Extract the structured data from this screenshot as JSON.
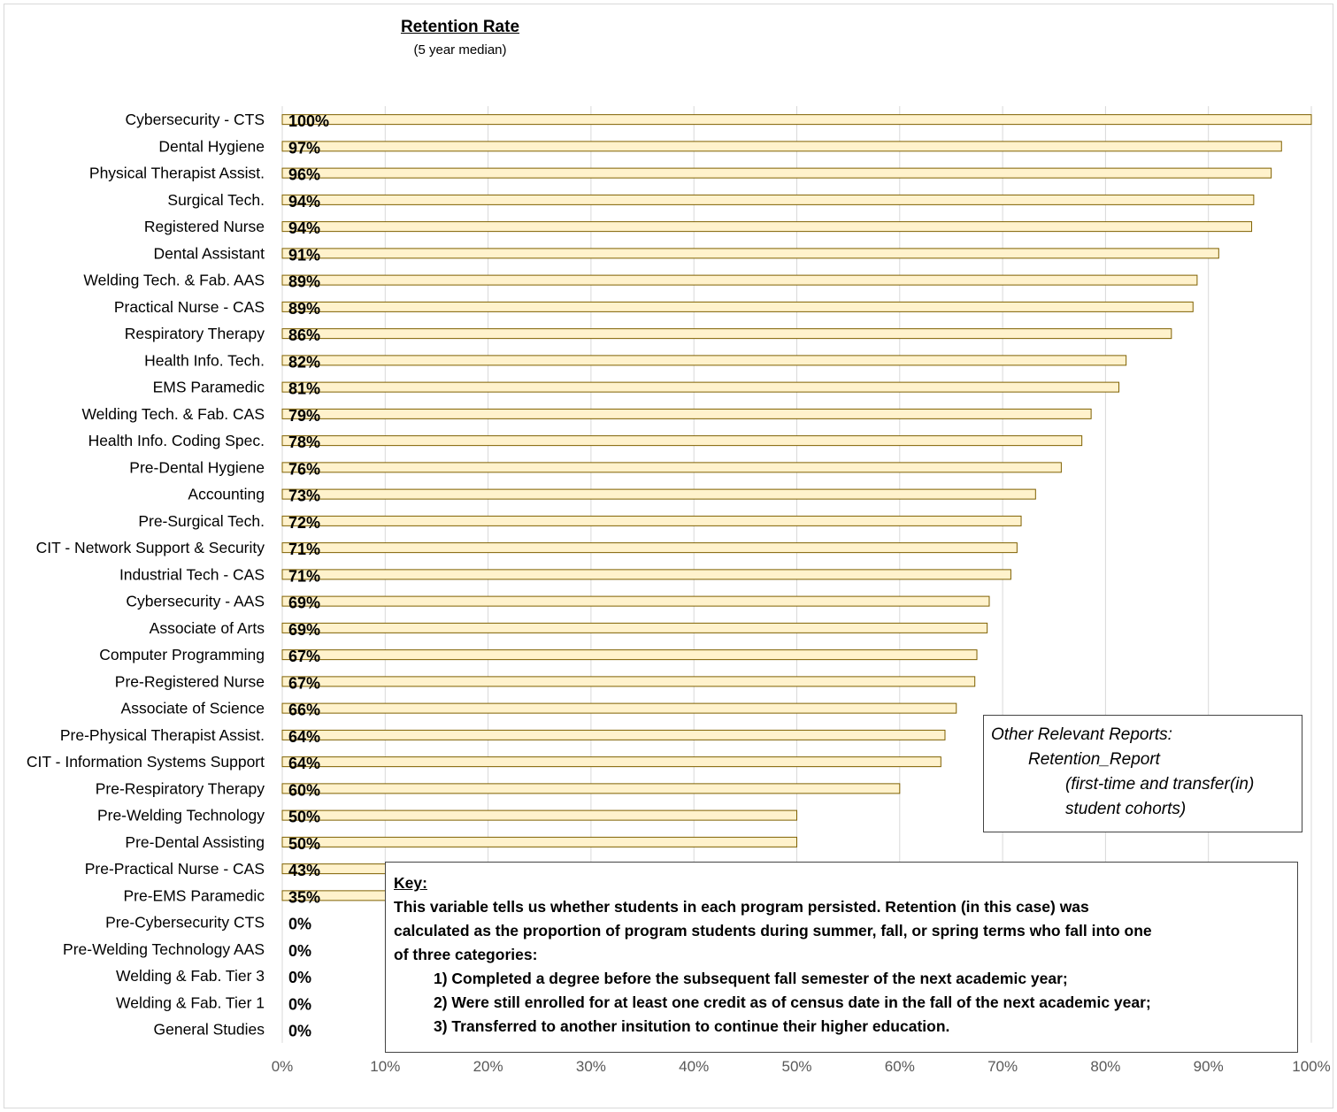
{
  "chart_data": {
    "type": "bar",
    "orientation": "horizontal",
    "title": "Retention Rate",
    "subtitle": "(5 year median)",
    "categories": [
      "Cybersecurity - CTS",
      "Dental Hygiene",
      "Physical Therapist Assist.",
      "Surgical Tech.",
      "Registered Nurse",
      "Dental Assistant",
      "Welding Tech. & Fab. AAS",
      "Practical Nurse - CAS",
      "Respiratory Therapy",
      "Health Info. Tech.",
      "EMS Paramedic",
      "Welding Tech. & Fab. CAS",
      "Health Info. Coding Spec.",
      "Pre-Dental Hygiene",
      "Accounting",
      "Pre-Surgical Tech.",
      "CIT - Network Support & Security",
      "Industrial Tech - CAS",
      "Cybersecurity - AAS",
      "Associate of Arts",
      "Computer Programming",
      "Pre-Registered Nurse",
      "Associate of Science",
      "Pre-Physical Therapist Assist.",
      "CIT - Information Systems Support",
      "Pre-Respiratory Therapy",
      "Pre-Welding Technology",
      "Pre-Dental Assisting",
      "Pre-Practical Nurse - CAS",
      "Pre-EMS Paramedic",
      "Pre-Cybersecurity CTS",
      "Pre-Welding Technology AAS",
      "Welding & Fab. Tier 3",
      "Welding & Fab. Tier 1",
      "General Studies"
    ],
    "values": [
      100,
      97.1,
      96.1,
      94.4,
      94.2,
      91,
      88.9,
      88.5,
      86.4,
      82,
      81.3,
      78.6,
      77.7,
      75.7,
      73.2,
      71.8,
      71.4,
      70.8,
      68.7,
      68.5,
      67.5,
      67.3,
      65.5,
      64.4,
      64,
      60,
      50,
      50,
      43,
      35,
      0,
      0,
      0,
      0,
      0
    ],
    "data_labels": [
      "100%",
      "97%",
      "96%",
      "94%",
      "94%",
      "91%",
      "89%",
      "89%",
      "86%",
      "82%",
      "81%",
      "79%",
      "78%",
      "76%",
      "73%",
      "72%",
      "71%",
      "71%",
      "69%",
      "69%",
      "67%",
      "67%",
      "66%",
      "64%",
      "64%",
      "60%",
      "50%",
      "50%",
      "43%",
      "35%",
      "0%",
      "0%",
      "0%",
      "0%",
      "0%"
    ],
    "xlim": [
      0,
      100
    ],
    "x_ticks": [
      "0%",
      "10%",
      "20%",
      "30%",
      "40%",
      "50%",
      "60%",
      "70%",
      "80%",
      "90%",
      "100%"
    ],
    "grid": true,
    "bar_color": "#fff2cc",
    "bar_edge_color": "#7f6000"
  },
  "reports_box": {
    "line1": "Other Relevant Reports:",
    "line2": "Retention_Report",
    "line3": "(first-time and transfer(in)",
    "line4": "student cohorts)"
  },
  "key_box": {
    "heading": "Key:",
    "line1": "This variable tells us whether students in each program persisted. Retention (in this case) was",
    "line2": "calculated as the proportion of program students during summer, fall, or spring terms who fall into one",
    "line3": "of three categories:",
    "item1": "1) Completed a degree before the subsequent fall semester of the next academic year;",
    "item2": "2) Were still enrolled for at least one credit as of census date in the fall of the next academic year;",
    "item3": "3) Transferred to another insitution to continue their higher education."
  }
}
